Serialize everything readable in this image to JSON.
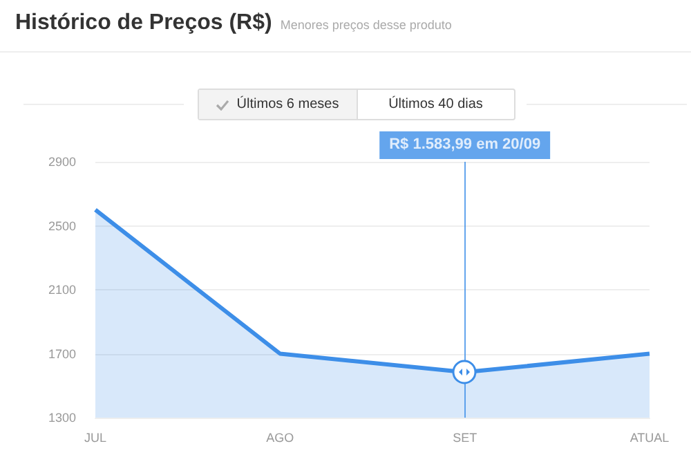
{
  "chart_data": {
    "type": "area",
    "title": "Histórico de Preços (R$)",
    "subtitle": "Menores preços desse produto",
    "annotations": [
      "Últimos 6 meses",
      "Últimos 40 dias"
    ],
    "categories": [
      "JUL",
      "AGO",
      "SET",
      "ATUAL"
    ],
    "series": [
      {
        "color": "#3d8ee8",
        "values": [
          2600,
          1700,
          1583.99,
          1700
        ]
      }
    ],
    "ylim": [
      1300,
      2900
    ],
    "yticks": [
      1300,
      1700,
      2100,
      2500,
      2900
    ],
    "grid": "y",
    "marker": "none",
    "line_style": "solid",
    "ref_lines": [
      {
        "axis": "x",
        "value": "SET",
        "label": "R$ 1.583,99 em 20/09",
        "color": "#3d8ee8"
      }
    ]
  }
}
